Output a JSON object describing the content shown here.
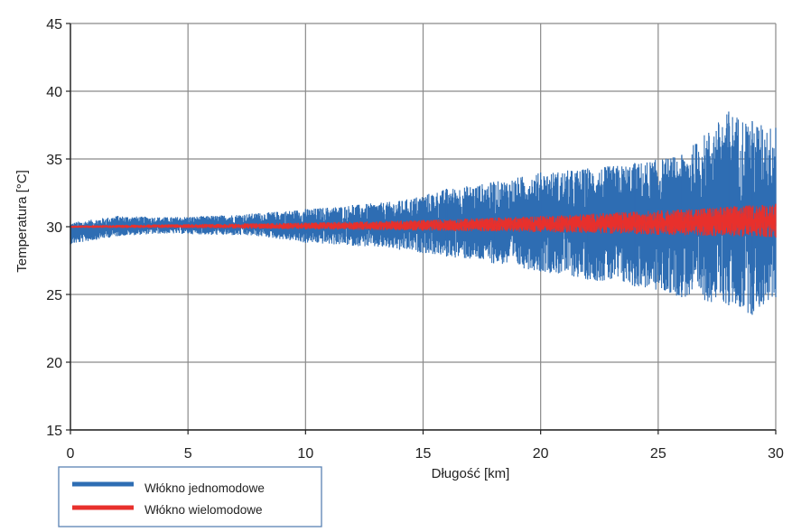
{
  "chart_data": {
    "type": "line",
    "xlabel": "Długość [km]",
    "ylabel": "Temperatura [°C]",
    "xlim": [
      0,
      30
    ],
    "ylim": [
      15,
      45
    ],
    "xticks": [
      0,
      5,
      10,
      15,
      20,
      25,
      30
    ],
    "yticks": [
      15,
      20,
      25,
      30,
      35,
      40,
      45
    ],
    "grid": true,
    "legend_position": "bottom-left",
    "series": [
      {
        "name": "Włókno jednomodowe",
        "color": "#2e6db3",
        "x": [
          0,
          2,
          4,
          6,
          8,
          10,
          12,
          14,
          16,
          18,
          20,
          22,
          24,
          26,
          28,
          29,
          30
        ],
        "y_min": [
          28.7,
          29.3,
          29.5,
          29.4,
          29.3,
          28.8,
          28.6,
          28.3,
          27.8,
          27.3,
          26.7,
          26.1,
          25.6,
          24.8,
          24.2,
          23.5,
          24.8
        ],
        "y_max": [
          30.3,
          30.8,
          30.7,
          30.8,
          31.0,
          31.3,
          31.6,
          31.9,
          32.8,
          33.3,
          34.0,
          34.3,
          34.7,
          35.3,
          38.5,
          37.8,
          37.3
        ]
      },
      {
        "name": "Włókno wielomodowe",
        "color": "#e8302c",
        "x": [
          0,
          5,
          10,
          15,
          20,
          25,
          30
        ],
        "y_min": [
          29.9,
          29.9,
          29.8,
          29.7,
          29.6,
          29.4,
          29.2
        ],
        "y_max": [
          30.1,
          30.2,
          30.3,
          30.5,
          30.8,
          31.2,
          31.7
        ]
      }
    ]
  }
}
